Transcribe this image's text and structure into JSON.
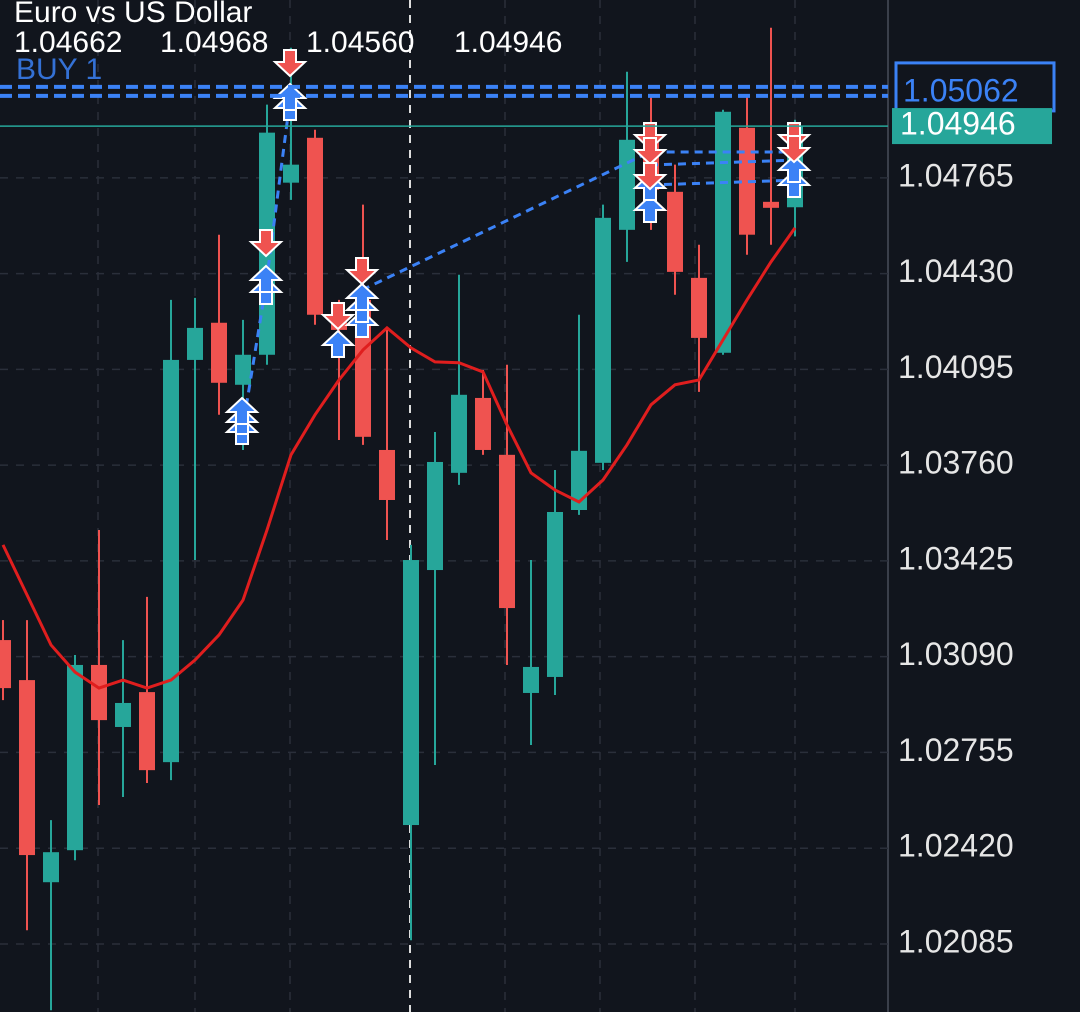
{
  "chart_data": {
    "type": "candlestick",
    "title": "Euro vs US Dollar",
    "ohlc_labels": [
      "1.04662",
      "1.04968",
      "1.04560",
      "1.04946"
    ],
    "open": [
      1.03148,
      1.03008,
      1.02301,
      1.02413,
      1.03061,
      1.02844,
      1.02966,
      1.02721,
      1.04128,
      1.04258,
      1.04041,
      1.04146,
      1.04748,
      1.04905,
      1.04286,
      1.04338,
      1.03813,
      1.02501,
      1.03393,
      1.03733,
      1.03995,
      1.03796,
      1.02963,
      1.03019,
      1.03603,
      1.03768,
      1.04583,
      1.04898,
      1.04716,
      1.04415,
      1.04153,
      1.0494,
      1.04681,
      1.04662
    ],
    "high": [
      1.03218,
      1.03218,
      1.02518,
      1.03096,
      1.03533,
      1.03148,
      1.03299,
      1.04338,
      1.04345,
      1.04566,
      1.04268,
      1.05021,
      1.0522,
      1.04933,
      1.04338,
      1.04671,
      1.04233,
      1.03481,
      1.03876,
      1.04426,
      1.04093,
      1.04111,
      1.03428,
      1.03743,
      1.04286,
      1.04671,
      1.05136,
      1.05056,
      1.04811,
      1.04531,
      1.05003,
      1.05049,
      1.0529,
      1.04968
    ],
    "low": [
      1.02938,
      1.02133,
      1.01853,
      1.02378,
      1.02571,
      1.02599,
      1.02648,
      1.02658,
      1.03428,
      1.03936,
      1.03813,
      1.04111,
      1.04688,
      1.04251,
      1.03848,
      1.03831,
      1.03498,
      1.02098,
      1.02711,
      1.03691,
      1.03796,
      1.03061,
      1.02781,
      1.02956,
      1.03586,
      1.03743,
      1.04471,
      1.04583,
      1.04356,
      1.04016,
      1.04146,
      1.04496,
      1.04531,
      1.0456
    ],
    "close": [
      1.0298,
      1.02396,
      1.02406,
      1.03061,
      1.02868,
      1.02928,
      1.02693,
      1.04128,
      1.0424,
      1.04048,
      1.04146,
      1.04923,
      1.04811,
      1.04286,
      1.04233,
      1.03859,
      1.03638,
      1.03428,
      1.03771,
      1.04006,
      1.03813,
      1.0326,
      1.03054,
      1.03596,
      1.0381,
      1.04625,
      1.04898,
      1.04723,
      1.04436,
      1.04205,
      1.04996,
      1.04566,
      1.0466,
      1.04946
    ],
    "up_color": "#26a69a",
    "down_color": "#ef5350",
    "moving_average": {
      "color": "#e01e1e",
      "values": [
        1.03481,
        1.03306,
        1.03131,
        1.03036,
        1.0298,
        1.03008,
        1.0298,
        1.03008,
        1.03078,
        1.03166,
        1.03288,
        1.03533,
        1.03796,
        1.03936,
        1.04058,
        1.04163,
        1.0424,
        1.0417,
        1.04121,
        1.04118,
        1.04086,
        1.03901,
        1.03733,
        1.03673,
        1.03631,
        1.03708,
        1.03831,
        1.03971,
        1.04041,
        1.04058,
        1.04198,
        1.04338,
        1.04471,
        1.0459
      ]
    },
    "ylim": [
      1.01847,
      1.05387
    ],
    "yticks": [
      1.04765,
      {
        "value": 1.0443,
        "label": "1.04430"
      },
      1.04095,
      {
        "value": 1.0376,
        "label": "1.03760"
      },
      1.03425,
      {
        "value": 1.0309,
        "label": "1.03090"
      },
      1.02755,
      {
        "value": 1.0242,
        "label": "1.02420"
      },
      1.02085
    ],
    "grid": true,
    "last_price": 1.04946,
    "last_price_color": "#26a69a",
    "order_line": {
      "label": "BUY 1",
      "price": 1.05062,
      "color": "#3b82f6"
    }
  }
}
